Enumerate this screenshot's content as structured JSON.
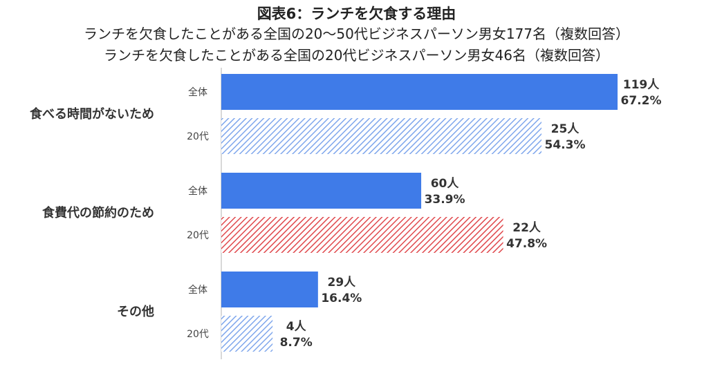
{
  "titles": {
    "main": "図表6：ランチを欠食する理由",
    "line1": "ランチを欠食したことがある全国の20～50代ビジネスパーソン男女177名（複数回答）",
    "line2": "ランチを欠食したことがある全国の20代ビジネスパーソン男女46名（複数回答）"
  },
  "colors": {
    "solid": "#3f7be8",
    "hatch_blue": "#7ea6ec",
    "hatch_red": "#e0484c",
    "axis": "#cccccc"
  },
  "chart_data": {
    "type": "bar",
    "orientation": "horizontal",
    "categories": [
      "食べる時間がないため",
      "食費代の節約のため",
      "その他"
    ],
    "series": [
      {
        "name": "全体",
        "values": [
          67.2,
          33.9,
          16.4
        ],
        "counts": [
          "119人",
          "60人",
          "29人"
        ],
        "value_labels": [
          "67.2%",
          "33.9%",
          "16.4%"
        ],
        "style": [
          "solid",
          "solid",
          "solid"
        ]
      },
      {
        "name": "20代",
        "values": [
          54.3,
          47.8,
          8.7
        ],
        "counts": [
          "25人",
          "22人",
          "4人"
        ],
        "value_labels": [
          "54.3%",
          "47.8%",
          "8.7%"
        ],
        "style": [
          "hatch-blue",
          "hatch-red",
          "hatch-blue"
        ]
      }
    ],
    "xlim": [
      0,
      67.2
    ],
    "grid": false,
    "legend": "none"
  }
}
